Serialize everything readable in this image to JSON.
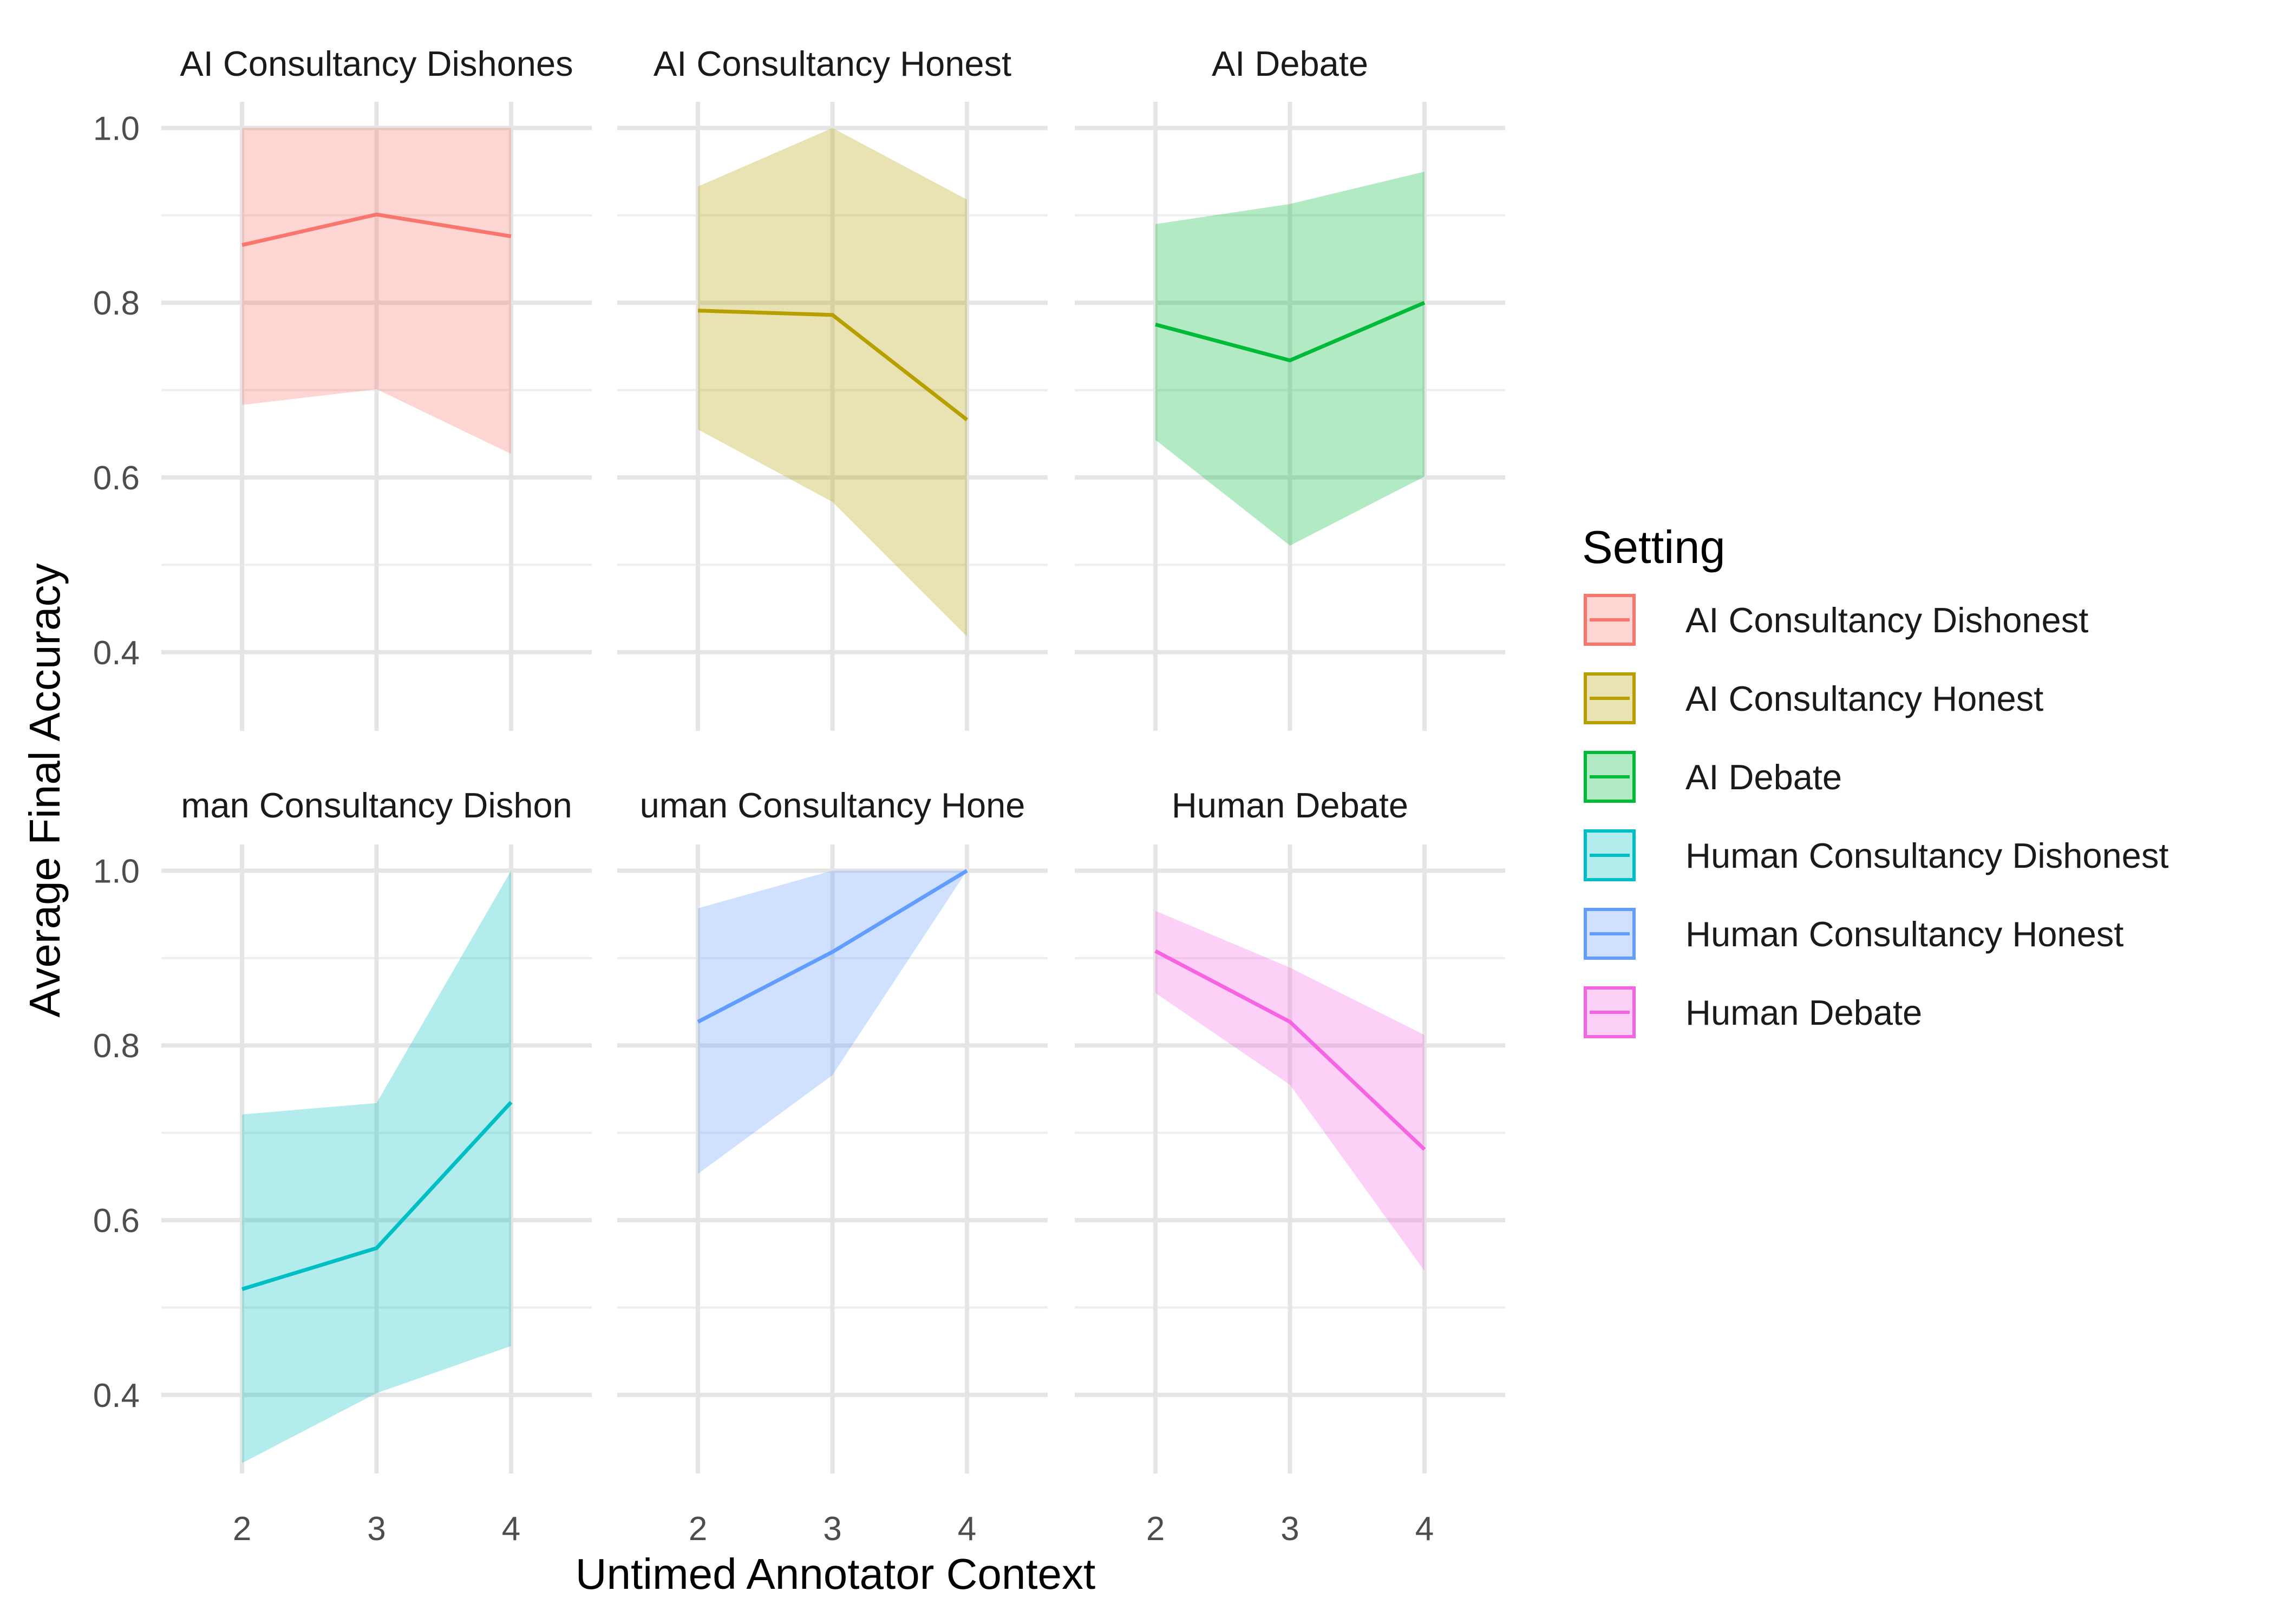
{
  "chart_data": {
    "type": "line",
    "facets": [
      {
        "name": "AI Consultancy Dishonest",
        "strip_label": "AI Consultancy Dishones",
        "color": "#F8766D",
        "x": [
          2,
          3,
          4
        ],
        "y": [
          0.866,
          0.901,
          0.876
        ],
        "ci_low": [
          0.683,
          0.701,
          0.627
        ],
        "ci_high": [
          1.0,
          1.0,
          1.0
        ]
      },
      {
        "name": "AI Consultancy Honest",
        "strip_label": "AI Consultancy Honest",
        "color": "#B79F00",
        "x": [
          2,
          3,
          4
        ],
        "y": [
          0.791,
          0.786,
          0.666
        ],
        "ci_low": [
          0.655,
          0.572,
          0.418
        ],
        "ci_high": [
          0.933,
          1.0,
          0.918
        ]
      },
      {
        "name": "AI Debate",
        "strip_label": "AI Debate",
        "color": "#00BA38",
        "x": [
          2,
          3,
          4
        ],
        "y": [
          0.775,
          0.734,
          0.8
        ],
        "ci_low": [
          0.643,
          0.522,
          0.601
        ],
        "ci_high": [
          0.89,
          0.913,
          0.95
        ]
      },
      {
        "name": "Human Consultancy Dishonest",
        "strip_label": "man Consultancy Dishon",
        "color": "#00BFC4",
        "x": [
          2,
          3,
          4
        ],
        "y": [
          0.521,
          0.568,
          0.735
        ],
        "ci_low": [
          0.322,
          0.402,
          0.456
        ],
        "ci_high": [
          0.721,
          0.734,
          1.0
        ]
      },
      {
        "name": "Human Consultancy Honest",
        "strip_label": "uman Consultancy Hone",
        "color": "#619CFF",
        "x": [
          2,
          3,
          4
        ],
        "y": [
          0.827,
          0.907,
          1.0
        ],
        "ci_low": [
          0.653,
          0.766,
          1.0
        ],
        "ci_high": [
          0.957,
          1.0,
          1.0
        ]
      },
      {
        "name": "Human Debate",
        "strip_label": "Human Debate",
        "color": "#F564E3",
        "x": [
          2,
          3,
          4
        ],
        "y": [
          0.908,
          0.827,
          0.681
        ],
        "ci_low": [
          0.86,
          0.755,
          0.542
        ],
        "ci_high": [
          0.954,
          0.889,
          0.812
        ]
      }
    ],
    "xlabel": "Untimed Annotator Context",
    "ylabel": "Average Final Accuracy",
    "x_ticks": [
      "2",
      "3",
      "4"
    ],
    "y_ticks": [
      "0.4",
      "0.6",
      "0.8",
      "1.0"
    ],
    "xlim": [
      1.4,
      4.6
    ],
    "ylim": [
      0.31,
      1.03
    ],
    "grid": true,
    "legend_title": "Setting",
    "legend_position": "right"
  }
}
